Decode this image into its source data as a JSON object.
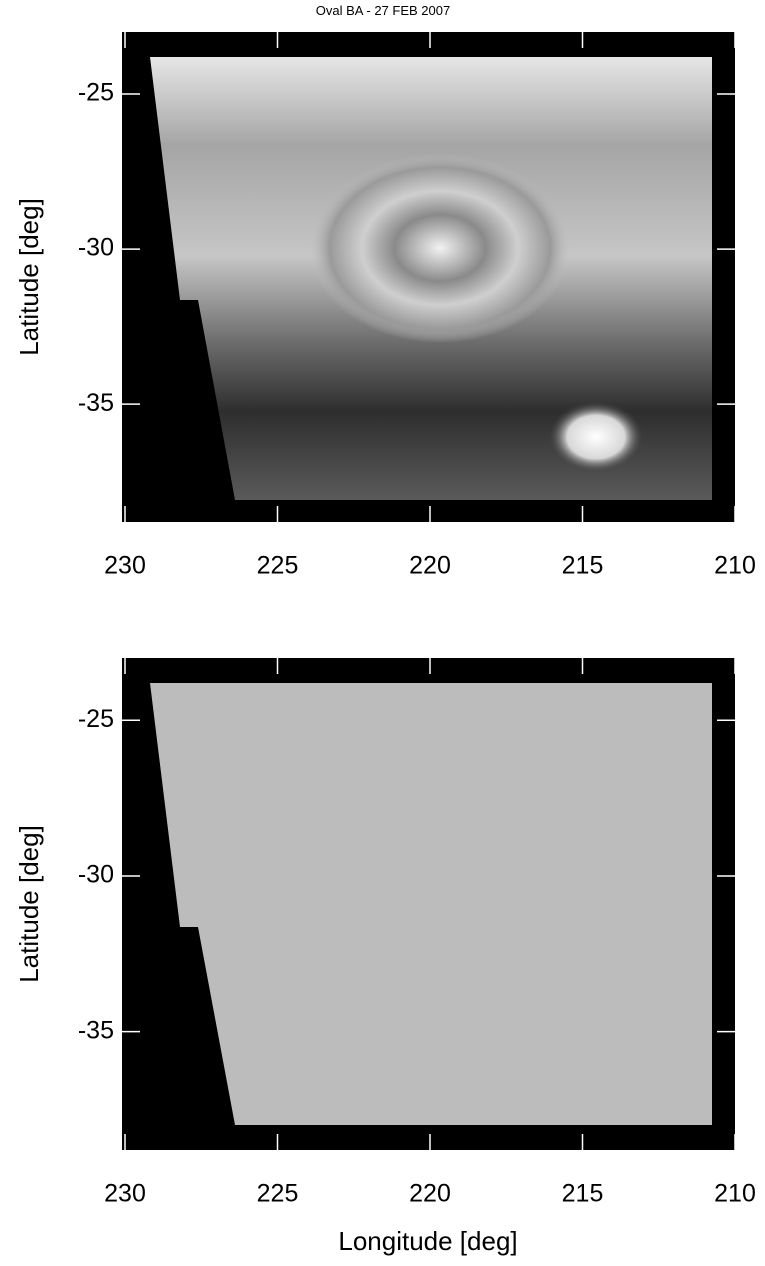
{
  "title": "Oval BA - 27 FEB 2007",
  "chart_data": [
    {
      "type": "image",
      "y_label": "Latitude [deg]",
      "xlim": [
        230,
        210
      ],
      "ylim": [
        -38.8,
        -23.0
      ],
      "xticks": [
        230,
        225,
        220,
        215,
        210
      ],
      "yticks": [
        -25,
        -30,
        -35
      ]
    },
    {
      "type": "quiver",
      "y_label": "Latitude [deg]",
      "x_label": "Longitude [deg]",
      "xlim": [
        230,
        210
      ],
      "ylim": [
        -38.8,
        -23.0
      ],
      "xticks": [
        230,
        225,
        220,
        215,
        210
      ],
      "yticks": [
        -25,
        -30,
        -35
      ]
    }
  ]
}
